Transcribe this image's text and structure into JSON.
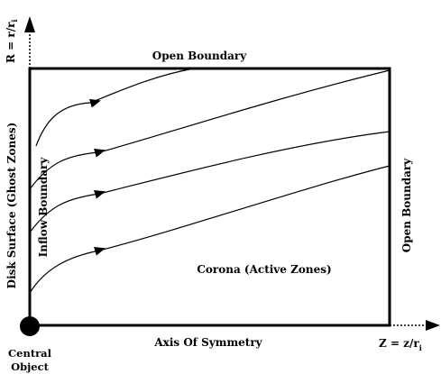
{
  "diagram": {
    "r_axis": {
      "label": "R = r/r",
      "subscript": "i"
    },
    "z_axis": {
      "label": "Z = z/r",
      "subscript": "i"
    },
    "top_boundary": "Open Boundary",
    "right_boundary": "Open Boundary",
    "left_boundary": "Disk Surface (Ghost Zones)",
    "inflow_boundary": "Inflow Boundary",
    "region": "Corona (Active Zones)",
    "bottom_axis": "Axis Of Symmetry",
    "central_object": [
      "Central",
      "Object"
    ]
  },
  "colors": {
    "line": "#000000",
    "background": "#ffffff"
  }
}
